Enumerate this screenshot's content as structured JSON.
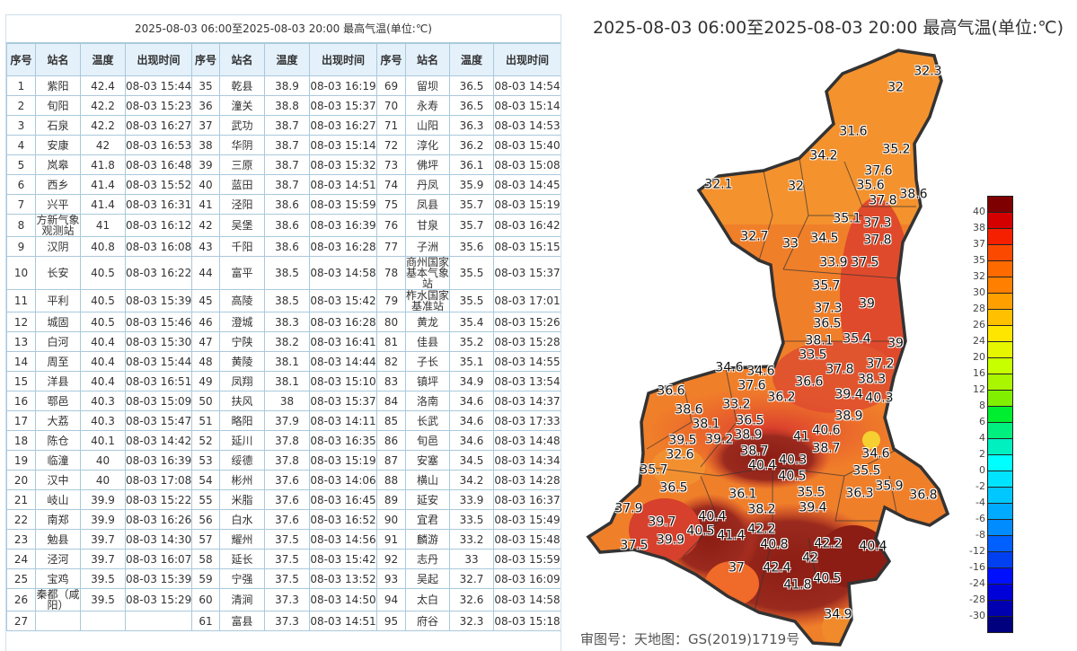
{
  "table": {
    "title": "2025-08-03 06:00至2025-08-03 20:00 最高气温(单位:℃)",
    "headers": [
      "序号",
      "站名",
      "温度",
      "出现时间",
      "序号",
      "站名",
      "温度",
      "出现时间",
      "序号",
      "站名",
      "温度",
      "出现时间"
    ],
    "rows": [
      [
        "1",
        "紫阳",
        "42.4",
        "08-03 15:44",
        "35",
        "乾县",
        "38.9",
        "08-03 16:19",
        "69",
        "留坝",
        "36.5",
        "08-03 14:54"
      ],
      [
        "2",
        "旬阳",
        "42.2",
        "08-03 15:23",
        "36",
        "潼关",
        "38.8",
        "08-03 15:37",
        "70",
        "永寿",
        "36.5",
        "08-03 15:14"
      ],
      [
        "3",
        "石泉",
        "42.2",
        "08-03 16:27",
        "37",
        "武功",
        "38.7",
        "08-03 16:27",
        "71",
        "山阳",
        "36.3",
        "08-03 14:53"
      ],
      [
        "4",
        "安康",
        "42",
        "08-03 16:53",
        "38",
        "华阴",
        "38.7",
        "08-03 15:14",
        "72",
        "淳化",
        "36.2",
        "08-03 15:40"
      ],
      [
        "5",
        "岚皋",
        "41.8",
        "08-03 16:48",
        "39",
        "三原",
        "38.7",
        "08-03 15:32",
        "73",
        "佛坪",
        "36.1",
        "08-03 15:08"
      ],
      [
        "6",
        "西乡",
        "41.4",
        "08-03 15:52",
        "40",
        "蓝田",
        "38.7",
        "08-03 14:51",
        "74",
        "丹凤",
        "35.9",
        "08-03 14:45"
      ],
      [
        "7",
        "兴平",
        "41.4",
        "08-03 16:31",
        "41",
        "泾阳",
        "38.6",
        "08-03 15:59",
        "75",
        "凤县",
        "35.7",
        "08-03 15:19"
      ],
      [
        "8",
        "方新气象观测站",
        "41",
        "08-03 16:12",
        "42",
        "吴堡",
        "38.6",
        "08-03 16:39",
        "76",
        "甘泉",
        "35.7",
        "08-03 16:42"
      ],
      [
        "9",
        "汉阴",
        "40.8",
        "08-03 16:08",
        "43",
        "千阳",
        "38.6",
        "08-03 16:28",
        "77",
        "子洲",
        "35.6",
        "08-03 15:15"
      ],
      [
        "10",
        "长安",
        "40.5",
        "08-03 16:22",
        "44",
        "富平",
        "38.5",
        "08-03 14:58",
        "78",
        "商州国家基本气象站",
        "35.5",
        "08-03 15:37"
      ],
      [
        "11",
        "平利",
        "40.5",
        "08-03 15:39",
        "45",
        "高陵",
        "38.5",
        "08-03 15:42",
        "79",
        "柞水国家基准站",
        "35.5",
        "08-03 17:01"
      ],
      [
        "12",
        "城固",
        "40.5",
        "08-03 15:46",
        "46",
        "澄城",
        "38.3",
        "08-03 16:28",
        "80",
        "黄龙",
        "35.4",
        "08-03 15:26"
      ],
      [
        "13",
        "白河",
        "40.4",
        "08-03 15:30",
        "47",
        "宁陕",
        "38.2",
        "08-03 16:41",
        "81",
        "佳县",
        "35.2",
        "08-03 15:28"
      ],
      [
        "14",
        "周至",
        "40.4",
        "08-03 15:44",
        "48",
        "黄陵",
        "38.1",
        "08-03 14:44",
        "82",
        "子长",
        "35.1",
        "08-03 14:55"
      ],
      [
        "15",
        "洋县",
        "40.4",
        "08-03 16:51",
        "49",
        "凤翔",
        "38.1",
        "08-03 15:10",
        "83",
        "镇坪",
        "34.9",
        "08-03 13:54"
      ],
      [
        "16",
        "鄠邑",
        "40.3",
        "08-03 15:09",
        "50",
        "扶风",
        "38",
        "08-03 15:37",
        "84",
        "洛南",
        "34.6",
        "08-03 14:37"
      ],
      [
        "17",
        "大荔",
        "40.3",
        "08-03 15:47",
        "51",
        "略阳",
        "37.9",
        "08-03 14:11",
        "85",
        "长武",
        "34.6",
        "08-03 17:33"
      ],
      [
        "18",
        "陈仓",
        "40.1",
        "08-03 14:42",
        "52",
        "延川",
        "37.8",
        "08-03 16:35",
        "86",
        "旬邑",
        "34.6",
        "08-03 14:48"
      ],
      [
        "19",
        "临潼",
        "40",
        "08-03 16:39",
        "53",
        "绥德",
        "37.8",
        "08-03 15:19",
        "87",
        "安塞",
        "34.5",
        "08-03 14:34"
      ],
      [
        "20",
        "汉中",
        "40",
        "08-03 17:08",
        "54",
        "彬州",
        "37.6",
        "08-03 14:06",
        "88",
        "横山",
        "34.2",
        "08-03 14:28"
      ],
      [
        "21",
        "岐山",
        "39.9",
        "08-03 15:22",
        "55",
        "米脂",
        "37.6",
        "08-03 16:45",
        "89",
        "延安",
        "33.9",
        "08-03 16:37"
      ],
      [
        "22",
        "南郑",
        "39.9",
        "08-03 16:26",
        "56",
        "白水",
        "37.6",
        "08-03 16:52",
        "90",
        "宜君",
        "33.5",
        "08-03 15:49"
      ],
      [
        "23",
        "勉县",
        "39.7",
        "08-03 14:30",
        "57",
        "耀州",
        "37.5",
        "08-03 14:56",
        "91",
        "麟游",
        "33.2",
        "08-03 15:48"
      ],
      [
        "24",
        "泾河",
        "39.7",
        "08-03 16:07",
        "58",
        "延长",
        "37.5",
        "08-03 15:42",
        "92",
        "志丹",
        "33",
        "08-03 15:59"
      ],
      [
        "25",
        "宝鸡",
        "39.5",
        "08-03 15:39",
        "59",
        "宁强",
        "37.5",
        "08-03 13:52",
        "93",
        "吴起",
        "32.7",
        "08-03 16:09"
      ],
      [
        "26",
        "秦都（咸阳）",
        "39.5",
        "08-03 15:29",
        "60",
        "清涧",
        "37.3",
        "08-03 14:50",
        "94",
        "太白",
        "32.6",
        "08-03 14:58"
      ],
      [
        "27",
        "",
        "",
        "",
        "61",
        "富县",
        "37.3",
        "08-03 14:51",
        "95",
        "府谷",
        "32.3",
        "08-03 15:18"
      ]
    ]
  },
  "watermark": "审图号：天地图：GS(2019)1719号",
  "map": {
    "title": "2025-08-03 06:00至2025-08-03 20:00 最高气温(单位:℃)",
    "labels": [
      "32.3",
      "32",
      "31.6",
      "35.2",
      "34.2",
      "37.6",
      "35.6",
      "37.8",
      "38.6",
      "32.1",
      "32",
      "35.1",
      "37.3",
      "37.8",
      "32.7",
      "33",
      "34.5",
      "33.9",
      "37.5",
      "35.7",
      "37.3",
      "39",
      "36.5",
      "38.1",
      "35.4",
      "39",
      "33.5",
      "37.2",
      "37.8",
      "38.3",
      "34.6",
      "34.6",
      "37.6",
      "36.6",
      "36.6",
      "39.4",
      "40.3",
      "38.6",
      "33.2",
      "36.5",
      "36.2",
      "38.1",
      "39.5",
      "38.9",
      "39.2",
      "38.7",
      "41",
      "40.6",
      "38.9",
      "40.4",
      "40.3",
      "40.5",
      "38.7",
      "34.6",
      "32.6",
      "35.7",
      "35.5",
      "35.9",
      "35.5",
      "36.5",
      "36.1",
      "36.3",
      "36.8",
      "39.4",
      "38.2",
      "37.9",
      "39.7",
      "40.4",
      "40.5",
      "39.9",
      "41.4",
      "42.2",
      "40.8",
      "42.2",
      "40.4",
      "42",
      "37.5",
      "37",
      "42.4",
      "40.5",
      "41.8",
      "34.9"
    ]
  },
  "legend": {
    "labels": [
      "40",
      "38",
      "37",
      "35",
      "32",
      "30",
      "28",
      "26",
      "24",
      "20",
      "16",
      "12",
      "8",
      "6",
      "4",
      "2",
      "0",
      "-2",
      "-4",
      "-6",
      "-8",
      "-12",
      "-16",
      "-24",
      "-28",
      "-30"
    ],
    "colors": [
      "#7f0000",
      "#d40000",
      "#f42000",
      "#fb4a00",
      "#fd6a00",
      "#ff8000",
      "#ffa000",
      "#ffc000",
      "#ffe600",
      "#e6f500",
      "#c8ff00",
      "#aaf500",
      "#80f000",
      "#00ee30",
      "#00f080",
      "#00f0c0",
      "#00ffff",
      "#00e4ff",
      "#00c8ff",
      "#00aaff",
      "#008cff",
      "#0060ff",
      "#0040f0",
      "#0010ff",
      "#0000d8",
      "#0000b0",
      "#00007f"
    ]
  }
}
